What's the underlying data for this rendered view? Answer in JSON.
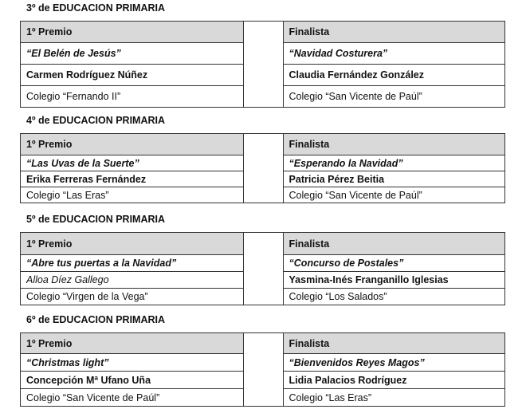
{
  "sections": [
    {
      "title": "3º de EDUCACION PRIMARIA",
      "left": {
        "header": "1º Premio",
        "work": "“El Belén de Jesús”",
        "author": "Carmen Rodríguez Núñez",
        "school": "Colegio “Fernando II”"
      },
      "right": {
        "header": "Finalista",
        "work": "“Navidad Costurera”",
        "author": "Claudia Fernández González",
        "school": "Colegio “San Vicente de Paúl”"
      }
    },
    {
      "title": "4º de EDUCACION PRIMARIA",
      "left": {
        "header": "1º Premio",
        "work": "“Las Uvas de la Suerte”",
        "author": "Erika Ferreras Fernández",
        "school": "Colegio “Las Eras”"
      },
      "right": {
        "header": "Finalista",
        "work": "“Esperando la Navidad”",
        "author": "Patricia Pérez Beitia",
        "school": "Colegio “San Vicente de Paúl”"
      }
    },
    {
      "title": "5º de EDUCACION PRIMARIA",
      "left": {
        "header": "1º Premio",
        "work": "“Abre tus puertas a la Navidad”",
        "author": "Alloa Díez Gallego",
        "school": "Colegio “Virgen de la Vega”"
      },
      "right": {
        "header": "Finalista",
        "work": "“Concurso de Postales”",
        "author": "Yasmina-Inés Franganillo Iglesias",
        "school": "Colegio “Los Salados”"
      }
    },
    {
      "title": "6º de EDUCACION PRIMARIA",
      "left": {
        "header": "1º Premio",
        "work": "“Christmas light”",
        "author": "Concepción Mª Ufano Uña",
        "school": "Colegio “San Vicente de Paúl”"
      },
      "right": {
        "header": "Finalista",
        "work": "“Bienvenidos Reyes Magos”",
        "author": "Lidia Palacios Rodríguez",
        "school": "Colegio “Las Eras”"
      }
    }
  ]
}
